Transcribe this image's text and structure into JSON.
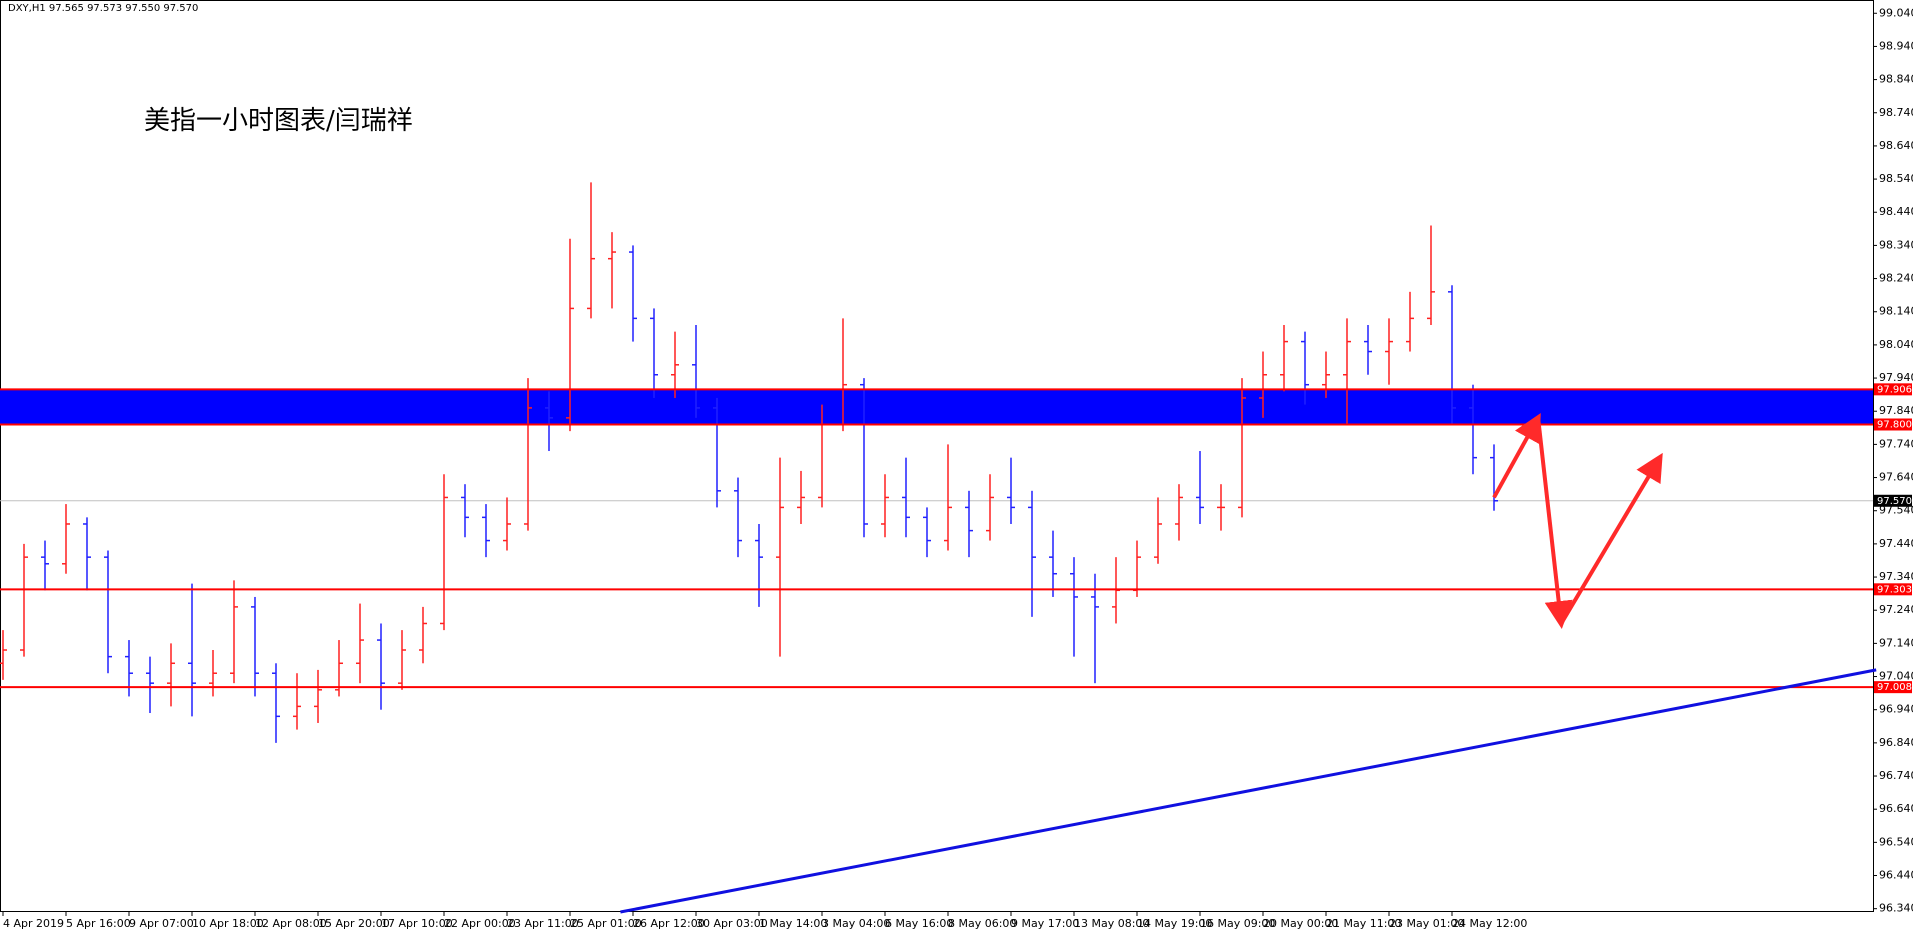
{
  "chart_data": {
    "type": "ohlc",
    "header": "DXY,H1  97.565 97.573 97.550 97.570",
    "title": "美指一小时图表/闫瑞祥",
    "up_color": "#ff2020",
    "down_color": "#2020ff",
    "categories": [
      "4 Apr 2019",
      null,
      null,
      "5 Apr 16:00",
      null,
      null,
      "9 Apr 07:00",
      null,
      null,
      "10 Apr 18:00",
      null,
      null,
      "12 Apr 08:00",
      null,
      null,
      "15 Apr 20:00",
      null,
      null,
      "17 Apr 10:00",
      null,
      null,
      "22 Apr 00:00",
      null,
      null,
      "23 Apr 11:00",
      null,
      null,
      "25 Apr 01:00",
      null,
      null,
      "26 Apr 12:00",
      null,
      null,
      "30 Apr 03:00",
      null,
      null,
      "1 May 14:00",
      null,
      null,
      "3 May 04:00",
      null,
      null,
      "6 May 16:00",
      null,
      null,
      "8 May 06:00",
      null,
      null,
      "9 May 17:00",
      null,
      null,
      "13 May 08:00",
      null,
      null,
      "14 May 19:00",
      null,
      null,
      "16 May 09:00",
      null,
      null,
      "20 May 00:00",
      null,
      null,
      "21 May 11:00",
      null,
      null,
      "23 May 01:00",
      null,
      null,
      "24 May 12:00",
      null,
      null
    ],
    "open": [
      97.08,
      97.12,
      97.4,
      97.38,
      97.5,
      97.4,
      97.1,
      97.05,
      97.02,
      97.08,
      97.02,
      97.05,
      97.25,
      97.05,
      96.92,
      96.95,
      97.0,
      97.08,
      97.15,
      97.02,
      97.12,
      97.2,
      97.58,
      97.52,
      97.45,
      97.5,
      97.85,
      97.82,
      98.15,
      98.3,
      98.32,
      98.12,
      97.95,
      97.98,
      97.85,
      97.6,
      97.45,
      97.4,
      97.55,
      97.58,
      97.8,
      97.92,
      97.5,
      97.58,
      97.52,
      97.45,
      97.55,
      97.48,
      97.58,
      97.55,
      97.4,
      97.35,
      97.28,
      97.25,
      97.3,
      97.4,
      97.5,
      97.58,
      97.55,
      97.55,
      97.88,
      97.95,
      98.05,
      97.92,
      97.95,
      98.05,
      98.02,
      98.05,
      98.12,
      98.2,
      97.85,
      97.7
    ],
    "high": [
      97.18,
      97.44,
      97.45,
      97.56,
      97.52,
      97.42,
      97.15,
      97.1,
      97.14,
      97.32,
      97.12,
      97.33,
      97.28,
      97.08,
      97.05,
      97.06,
      97.15,
      97.26,
      97.2,
      97.18,
      97.25,
      97.65,
      97.62,
      97.56,
      97.58,
      97.94,
      97.9,
      98.36,
      98.53,
      98.38,
      98.34,
      98.15,
      98.08,
      98.1,
      97.88,
      97.64,
      97.5,
      97.7,
      97.66,
      97.86,
      98.12,
      97.94,
      97.65,
      97.7,
      97.55,
      97.74,
      97.6,
      97.65,
      97.7,
      97.6,
      97.48,
      97.4,
      97.35,
      97.4,
      97.45,
      97.58,
      97.62,
      97.72,
      97.62,
      97.94,
      98.02,
      98.1,
      98.08,
      98.02,
      98.12,
      98.1,
      98.12,
      98.2,
      98.4,
      98.22,
      97.92,
      97.74
    ],
    "low": [
      97.03,
      97.1,
      97.3,
      97.35,
      97.3,
      97.05,
      96.98,
      96.93,
      96.95,
      96.92,
      96.98,
      97.02,
      96.98,
      96.84,
      96.88,
      96.9,
      96.98,
      97.02,
      96.94,
      97.0,
      97.08,
      97.18,
      97.46,
      97.4,
      97.42,
      97.48,
      97.72,
      97.78,
      98.12,
      98.15,
      98.05,
      97.88,
      97.88,
      97.82,
      97.55,
      97.4,
      97.25,
      97.1,
      97.5,
      97.55,
      97.78,
      97.46,
      97.46,
      97.46,
      97.4,
      97.42,
      97.4,
      97.45,
      97.5,
      97.22,
      97.28,
      97.1,
      97.02,
      97.2,
      97.28,
      97.38,
      97.45,
      97.5,
      97.48,
      97.52,
      97.82,
      97.9,
      97.86,
      97.88,
      97.8,
      97.95,
      97.92,
      98.02,
      98.1,
      97.8,
      97.65,
      97.54
    ],
    "close": [
      97.12,
      97.4,
      97.38,
      97.5,
      97.4,
      97.1,
      97.05,
      97.02,
      97.08,
      97.02,
      97.05,
      97.25,
      97.05,
      96.92,
      96.95,
      97.0,
      97.08,
      97.15,
      97.02,
      97.12,
      97.2,
      97.58,
      97.52,
      97.45,
      97.5,
      97.85,
      97.82,
      98.15,
      98.3,
      98.32,
      98.12,
      97.95,
      97.98,
      97.85,
      97.6,
      97.45,
      97.4,
      97.55,
      97.58,
      97.8,
      97.92,
      97.5,
      97.58,
      97.52,
      97.45,
      97.55,
      97.48,
      97.58,
      97.55,
      97.4,
      97.35,
      97.28,
      97.25,
      97.3,
      97.4,
      97.5,
      97.58,
      97.55,
      97.55,
      97.88,
      97.95,
      98.05,
      97.92,
      97.95,
      98.05,
      98.02,
      98.05,
      98.12,
      98.2,
      97.85,
      97.7,
      97.57
    ],
    "ylim": [
      96.33,
      99.08
    ],
    "yticks": [
      {
        "value": 96.34,
        "label": "96.340"
      },
      {
        "value": 96.44,
        "label": "96.440"
      },
      {
        "value": 96.54,
        "label": "96.540"
      },
      {
        "value": 96.64,
        "label": "96.640"
      },
      {
        "value": 96.74,
        "label": "96.740"
      },
      {
        "value": 96.84,
        "label": "96.840"
      },
      {
        "value": 96.94,
        "label": "96.940"
      },
      {
        "value": 97.04,
        "label": "97.040"
      },
      {
        "value": 97.14,
        "label": "97.140"
      },
      {
        "value": 97.24,
        "label": "97.240"
      },
      {
        "value": 97.34,
        "label": "97.340"
      },
      {
        "value": 97.44,
        "label": "97.440"
      },
      {
        "value": 97.54,
        "label": "97.540"
      },
      {
        "value": 97.64,
        "label": "97.640"
      },
      {
        "value": 97.74,
        "label": "97.740"
      },
      {
        "value": 97.84,
        "label": "97.840"
      },
      {
        "value": 97.94,
        "label": "97.940"
      },
      {
        "value": 98.04,
        "label": "98.040"
      },
      {
        "value": 98.14,
        "label": "98.140"
      },
      {
        "value": 98.24,
        "label": "98.240"
      },
      {
        "value": 98.34,
        "label": "98.340"
      },
      {
        "value": 98.44,
        "label": "98.440"
      },
      {
        "value": 98.54,
        "label": "98.540"
      },
      {
        "value": 98.64,
        "label": "98.640"
      },
      {
        "value": 98.74,
        "label": "98.740"
      },
      {
        "value": 98.84,
        "label": "98.840"
      },
      {
        "value": 98.94,
        "label": "98.940"
      },
      {
        "value": 99.04,
        "label": "99.040"
      }
    ],
    "levels": [
      {
        "value": 97.906,
        "label": "97.906",
        "color": "#ff0000"
      },
      {
        "value": 97.8,
        "label": "97.800",
        "color": "#ff0000"
      },
      {
        "value": 97.303,
        "label": "97.303",
        "color": "#ff0000"
      },
      {
        "value": 97.008,
        "label": "97.008",
        "color": "#ff0000"
      }
    ],
    "zone_color": "#0000ff",
    "last_price": {
      "value": 97.57,
      "label": "97.570"
    },
    "trendline": {
      "x": [
        29.4,
        89.2
      ],
      "y": [
        96.33,
        97.06
      ],
      "color": "#1010e0"
    },
    "projection": {
      "x": [
        71.0,
        73.1,
        74.2,
        78.9
      ],
      "y": [
        97.58,
        97.82,
        97.2,
        97.7
      ],
      "color": "#ff2a2a"
    },
    "grid": false
  }
}
